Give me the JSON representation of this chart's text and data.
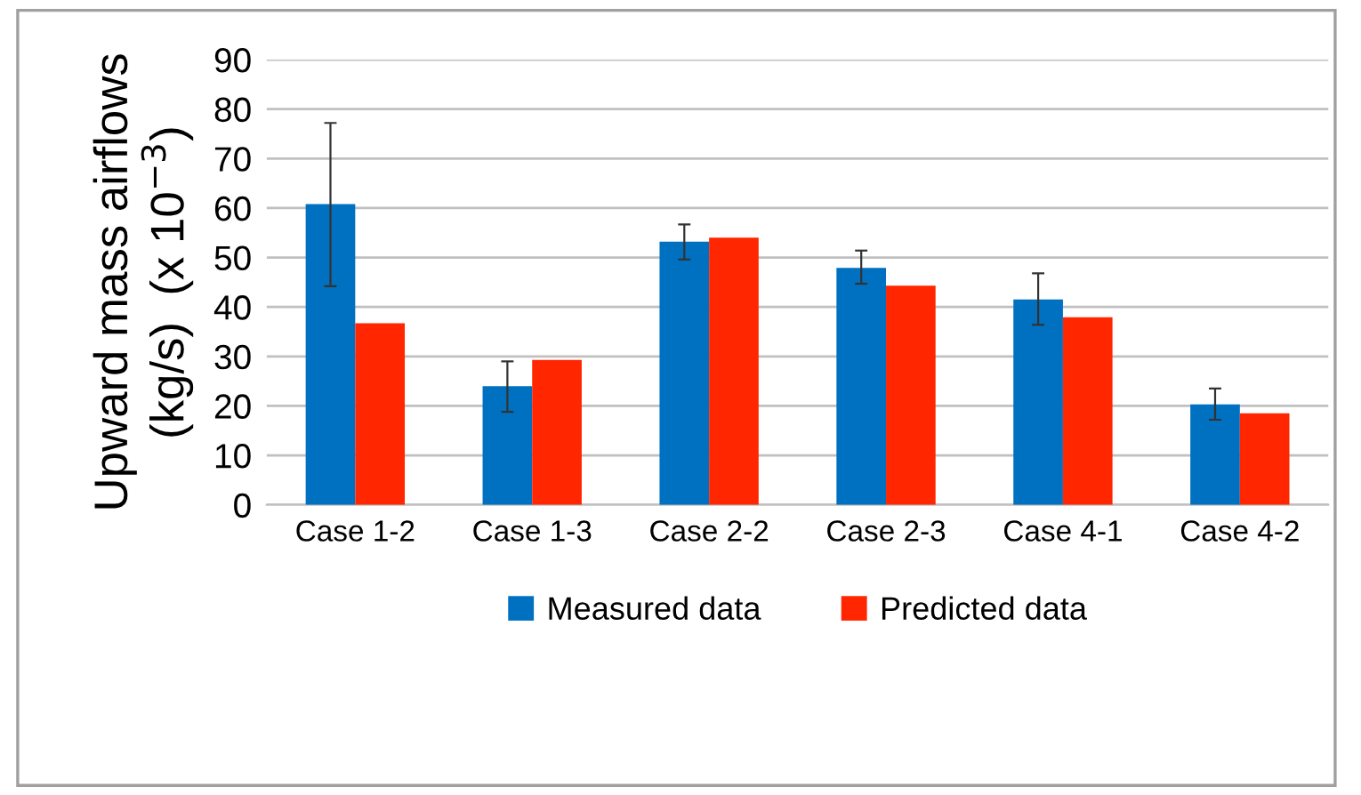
{
  "chart_data": {
    "type": "bar",
    "ylabel": "Upward mass airflows\n(kg/s)  (x 10$^{−3}$)",
    "categories": [
      "Case 1-2",
      "Case 1-3",
      "Case 2-2",
      "Case 2-3",
      "Case 4-1",
      "Case 4-2"
    ],
    "series": [
      {
        "name": "Measured data",
        "color": "#0070c0",
        "values": [
          60.8,
          24.0,
          53.2,
          47.9,
          41.5,
          20.3
        ],
        "errors": [
          [
            44.2,
            77.2
          ],
          [
            18.8,
            29.0
          ],
          [
            49.6,
            56.7
          ],
          [
            44.7,
            51.4
          ],
          [
            36.4,
            46.8
          ],
          [
            17.2,
            23.5
          ]
        ]
      },
      {
        "name": "Predicted data",
        "color": "#ff2600",
        "values": [
          36.7,
          29.3,
          54.0,
          44.3,
          37.9,
          18.5
        ]
      }
    ],
    "ylim": [
      0,
      90
    ],
    "yticks": [
      0,
      10,
      20,
      30,
      40,
      50,
      60,
      70,
      80,
      90
    ],
    "grid": "y",
    "legend": "bottom"
  }
}
